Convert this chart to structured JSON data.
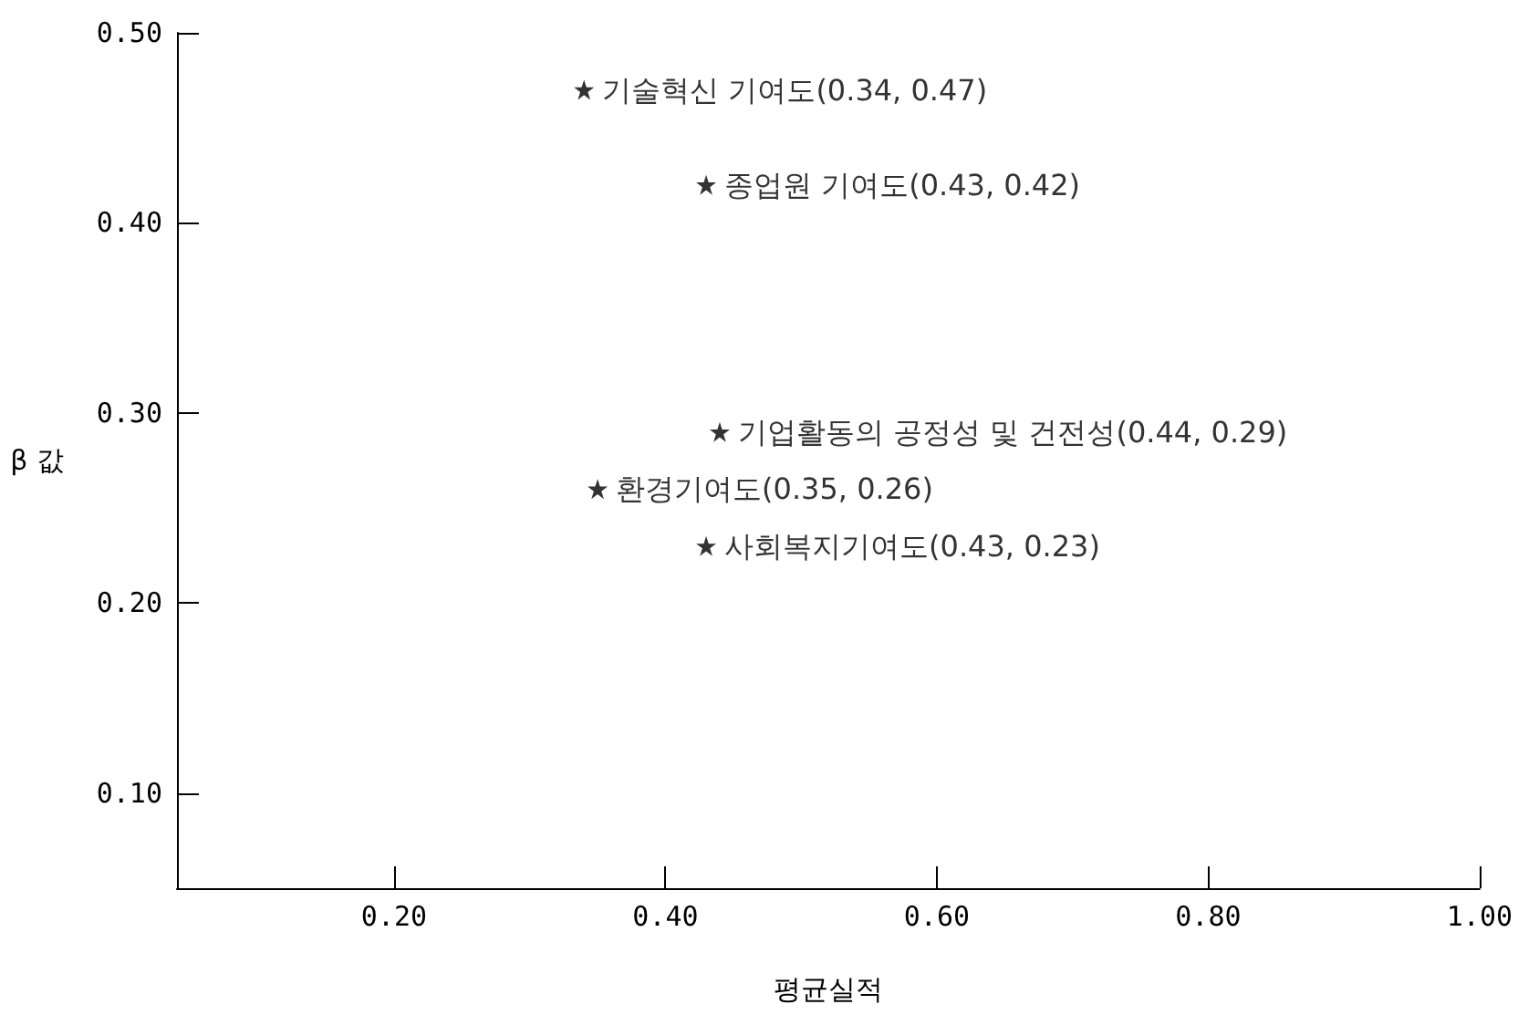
{
  "chart_data": {
    "type": "scatter",
    "xlabel": "평균실적",
    "ylabel": "β 값",
    "x": [
      0.34,
      0.43,
      0.44,
      0.35,
      0.43
    ],
    "values": [
      0.47,
      0.42,
      0.29,
      0.26,
      0.23
    ],
    "color": "#000000",
    "marker": "star",
    "grid": false,
    "xlim": [
      0.04,
      1.0
    ],
    "ylim": [
      0.05,
      0.5
    ],
    "xticks": [
      {
        "value": 0.2,
        "label": "0.20"
      },
      {
        "value": 0.4,
        "label": "0.40"
      },
      {
        "value": 0.6,
        "label": "0.60"
      },
      {
        "value": 0.8,
        "label": "0.80"
      },
      {
        "value": 1.0,
        "label": "1.00"
      }
    ],
    "yticks": [
      {
        "value": 0.1,
        "label": "0.10"
      },
      {
        "value": 0.2,
        "label": "0.20"
      },
      {
        "value": 0.3,
        "label": "0.30"
      },
      {
        "value": 0.4,
        "label": "0.40"
      },
      {
        "value": 0.5,
        "label": "0.50"
      }
    ],
    "annotations": [
      {
        "text": "기술혁신 기여도(0.34, 0.47)",
        "x": 0.34,
        "y": 0.47
      },
      {
        "text": "종업원 기여도(0.43, 0.42)",
        "x": 0.43,
        "y": 0.42
      },
      {
        "text": "기업활동의 공정성 및 건전성(0.44, 0.29)",
        "x": 0.44,
        "y": 0.29
      },
      {
        "text": "환경기여도(0.35, 0.26)",
        "x": 0.35,
        "y": 0.26
      },
      {
        "text": "사회복지기여도(0.43, 0.23)",
        "x": 0.43,
        "y": 0.23
      }
    ]
  }
}
